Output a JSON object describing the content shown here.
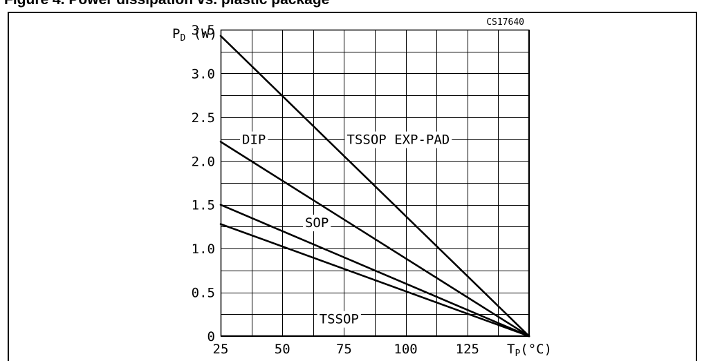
{
  "figure": {
    "heading": "Figure 4. Power dissipation vs. plastic package"
  },
  "chart_data": {
    "type": "line",
    "code": "CS17640",
    "xlabel": "TP(°C)",
    "ylabel": "PD (W)",
    "xlim": [
      25,
      150
    ],
    "ylim": [
      0,
      3.5
    ],
    "xticks": [
      25,
      50,
      75,
      100,
      125
    ],
    "xtick_labels": [
      "25",
      "50",
      "75",
      "100",
      "125"
    ],
    "yticks": [
      0,
      0.5,
      1.0,
      1.5,
      2.0,
      2.5,
      3.0,
      3.5
    ],
    "ytick_labels": [
      "0",
      "0.5",
      "1.0",
      "1.5",
      "2.0",
      "2.5",
      "3.0",
      "3.5"
    ],
    "grid": true,
    "series": [
      {
        "name": "TSSOP EXP-PAD",
        "x": [
          25,
          150
        ],
        "y": [
          3.43,
          0
        ]
      },
      {
        "name": "DIP",
        "x": [
          25,
          150
        ],
        "y": [
          2.22,
          0
        ]
      },
      {
        "name": "SOP",
        "x": [
          25,
          150
        ],
        "y": [
          1.5,
          0
        ]
      },
      {
        "name": "TSSOP",
        "x": [
          25,
          150
        ],
        "y": [
          1.28,
          0
        ]
      }
    ],
    "annotations": [
      {
        "text": "TSSOP EXP-PAD",
        "x": 97,
        "y": 2.25
      },
      {
        "text": "DIP",
        "x": 38.5,
        "y": 2.25
      },
      {
        "text": "SOP",
        "x": 64,
        "y": 1.3
      },
      {
        "text": "TSSOP",
        "x": 73,
        "y": 0.2
      }
    ]
  }
}
